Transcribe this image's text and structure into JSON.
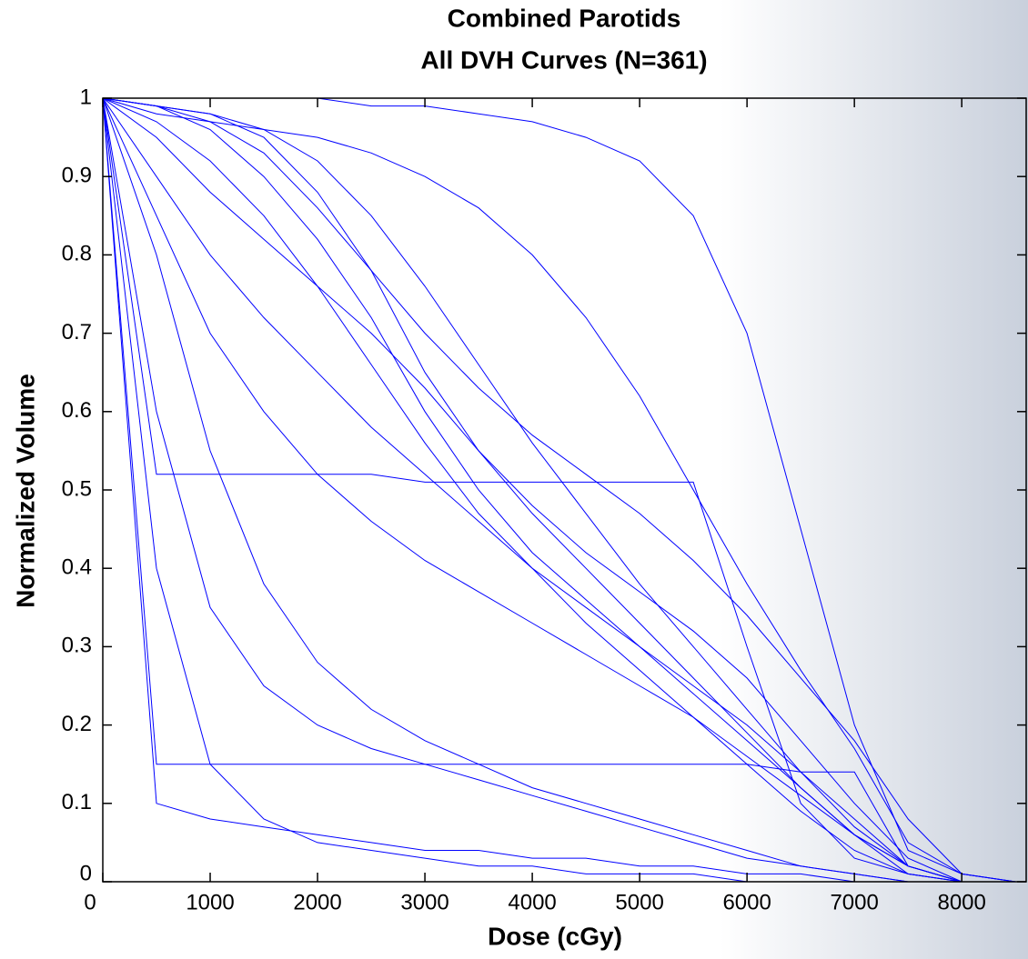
{
  "chart_data": {
    "type": "line",
    "title": [
      "Combined Parotids",
      "All DVH Curves (N=361)"
    ],
    "x_label": "Dose (cGy)",
    "y_label": "Normalized Volume",
    "xlim": [
      0,
      8600
    ],
    "ylim": [
      0,
      1
    ],
    "xticks": [
      0,
      1000,
      2000,
      3000,
      4000,
      5000,
      6000,
      7000,
      8000
    ],
    "yticks": [
      0,
      0.1,
      0.2,
      0.3,
      0.4,
      0.5,
      0.6,
      0.7,
      0.8,
      0.9,
      1
    ],
    "x": [
      0,
      500,
      1000,
      1500,
      2000,
      2500,
      3000,
      3500,
      4000,
      4500,
      5000,
      5500,
      6000,
      6500,
      7000,
      7500,
      8000,
      8500
    ],
    "series": [
      {
        "color": "#0000ff",
        "values": [
          1,
          0.98,
          0.97,
          0.96,
          0.95,
          0.93,
          0.9,
          0.86,
          0.8,
          0.72,
          0.62,
          0.5,
          0.38,
          0.27,
          0.17,
          0.05,
          0.01,
          0
        ]
      },
      {
        "color": "#0000ff",
        "values": [
          1,
          1,
          1,
          1,
          1,
          0.99,
          0.99,
          0.98,
          0.97,
          0.95,
          0.92,
          0.85,
          0.7,
          0.45,
          0.2,
          0.04,
          0.01,
          0
        ]
      },
      {
        "color": "#0000ff",
        "values": [
          1,
          0.95,
          0.88,
          0.82,
          0.76,
          0.7,
          0.63,
          0.55,
          0.47,
          0.4,
          0.33,
          0.26,
          0.19,
          0.12,
          0.06,
          0.02,
          0,
          0
        ]
      },
      {
        "color": "#0000ff",
        "values": [
          1,
          0.9,
          0.8,
          0.72,
          0.65,
          0.58,
          0.52,
          0.46,
          0.4,
          0.35,
          0.3,
          0.25,
          0.2,
          0.14,
          0.08,
          0.02,
          0,
          0
        ]
      },
      {
        "color": "#0000ff",
        "values": [
          1,
          0.4,
          0.15,
          0.08,
          0.05,
          0.04,
          0.03,
          0.02,
          0.02,
          0.01,
          0.01,
          0.01,
          0,
          0,
          0,
          0,
          0,
          0
        ]
      },
      {
        "color": "#0000ff",
        "values": [
          1,
          0.99,
          0.96,
          0.9,
          0.82,
          0.72,
          0.6,
          0.5,
          0.42,
          0.36,
          0.3,
          0.24,
          0.18,
          0.12,
          0.06,
          0.02,
          0,
          0
        ]
      },
      {
        "color": "#0000ff",
        "values": [
          1,
          0.97,
          0.92,
          0.85,
          0.76,
          0.66,
          0.56,
          0.47,
          0.4,
          0.33,
          0.27,
          0.21,
          0.15,
          0.09,
          0.04,
          0.01,
          0,
          0
        ]
      },
      {
        "color": "#0000ff",
        "values": [
          1,
          0.6,
          0.35,
          0.25,
          0.2,
          0.17,
          0.15,
          0.13,
          0.11,
          0.09,
          0.07,
          0.05,
          0.03,
          0.02,
          0.01,
          0,
          0,
          0
        ]
      },
      {
        "color": "#0000ff",
        "values": [
          1,
          0.99,
          0.98,
          0.96,
          0.92,
          0.85,
          0.76,
          0.66,
          0.56,
          0.47,
          0.38,
          0.3,
          0.22,
          0.14,
          0.07,
          0.02,
          0,
          0
        ]
      },
      {
        "color": "#0000ff",
        "values": [
          1,
          0.85,
          0.7,
          0.6,
          0.52,
          0.46,
          0.41,
          0.37,
          0.33,
          0.29,
          0.25,
          0.21,
          0.16,
          0.11,
          0.06,
          0.01,
          0,
          0
        ]
      },
      {
        "color": "#0000ff",
        "values": [
          1,
          0.52,
          0.52,
          0.52,
          0.52,
          0.52,
          0.51,
          0.51,
          0.51,
          0.51,
          0.51,
          0.51,
          0.3,
          0.1,
          0.03,
          0.01,
          0,
          0
        ]
      },
      {
        "color": "#0000ff",
        "values": [
          1,
          0.15,
          0.15,
          0.15,
          0.15,
          0.15,
          0.15,
          0.15,
          0.15,
          0.15,
          0.15,
          0.15,
          0.15,
          0.14,
          0.14,
          0.02,
          0,
          0
        ]
      },
      {
        "color": "#0000ff",
        "values": [
          1,
          0.99,
          0.98,
          0.95,
          0.88,
          0.78,
          0.65,
          0.55,
          0.48,
          0.42,
          0.37,
          0.32,
          0.26,
          0.18,
          0.1,
          0.03,
          0,
          0
        ]
      },
      {
        "color": "#0000ff",
        "values": [
          1,
          0.8,
          0.55,
          0.38,
          0.28,
          0.22,
          0.18,
          0.15,
          0.12,
          0.1,
          0.08,
          0.06,
          0.04,
          0.02,
          0.01,
          0,
          0,
          0
        ]
      },
      {
        "color": "#0000ff",
        "values": [
          1,
          0.99,
          0.97,
          0.93,
          0.86,
          0.78,
          0.7,
          0.63,
          0.57,
          0.52,
          0.47,
          0.41,
          0.34,
          0.26,
          0.18,
          0.08,
          0.01,
          0
        ]
      },
      {
        "color": "#0000ff",
        "values": [
          1,
          0.1,
          0.08,
          0.07,
          0.06,
          0.05,
          0.04,
          0.04,
          0.03,
          0.03,
          0.02,
          0.02,
          0.01,
          0.01,
          0,
          0,
          0,
          0
        ]
      }
    ]
  }
}
